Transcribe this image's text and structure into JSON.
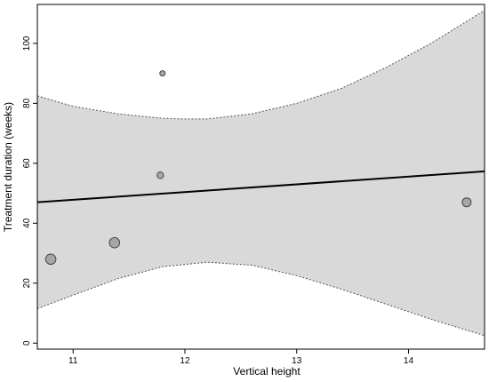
{
  "chart_data": {
    "type": "scatter",
    "title": "",
    "xlabel": "Vertical height",
    "ylabel": "Treatment duration (weeks)",
    "xlim": [
      10.68,
      14.68
    ],
    "ylim": [
      -2,
      113
    ],
    "x_ticks": [
      11,
      12,
      13,
      14
    ],
    "y_ticks": [
      0,
      20,
      40,
      60,
      80,
      100
    ],
    "grid": false,
    "points": [
      {
        "x": 10.8,
        "y": 28,
        "weight": 1.0
      },
      {
        "x": 11.37,
        "y": 33.5,
        "weight": 1.0
      },
      {
        "x": 11.78,
        "y": 56,
        "weight": 0.3
      },
      {
        "x": 11.8,
        "y": 90,
        "weight": 0.15
      },
      {
        "x": 14.52,
        "y": 47,
        "weight": 0.7
      }
    ],
    "regression_line": [
      {
        "x": 10.68,
        "y": 47
      },
      {
        "x": 14.68,
        "y": 57.3
      }
    ],
    "confidence_band": {
      "upper": [
        {
          "x": 10.68,
          "y": 82.5
        },
        {
          "x": 11.0,
          "y": 79
        },
        {
          "x": 11.4,
          "y": 76.5
        },
        {
          "x": 11.8,
          "y": 75
        },
        {
          "x": 12.0,
          "y": 74.8
        },
        {
          "x": 12.2,
          "y": 74.8
        },
        {
          "x": 12.6,
          "y": 76.5
        },
        {
          "x": 13.0,
          "y": 80
        },
        {
          "x": 13.4,
          "y": 85
        },
        {
          "x": 13.8,
          "y": 92
        },
        {
          "x": 14.2,
          "y": 100
        },
        {
          "x": 14.68,
          "y": 111
        }
      ],
      "lower": [
        {
          "x": 10.68,
          "y": 11.5
        },
        {
          "x": 11.0,
          "y": 16
        },
        {
          "x": 11.4,
          "y": 21.5
        },
        {
          "x": 11.8,
          "y": 25.5
        },
        {
          "x": 12.2,
          "y": 27
        },
        {
          "x": 12.6,
          "y": 26
        },
        {
          "x": 13.0,
          "y": 22.5
        },
        {
          "x": 13.4,
          "y": 18
        },
        {
          "x": 13.8,
          "y": 13
        },
        {
          "x": 14.2,
          "y": 8
        },
        {
          "x": 14.68,
          "y": 2.5
        }
      ]
    },
    "colors": {
      "band_fill": "#d9d9d9",
      "band_edge": "#555555",
      "line": "#000000",
      "point_fill": "#a6a6a6",
      "point_stroke": "#444444"
    }
  }
}
